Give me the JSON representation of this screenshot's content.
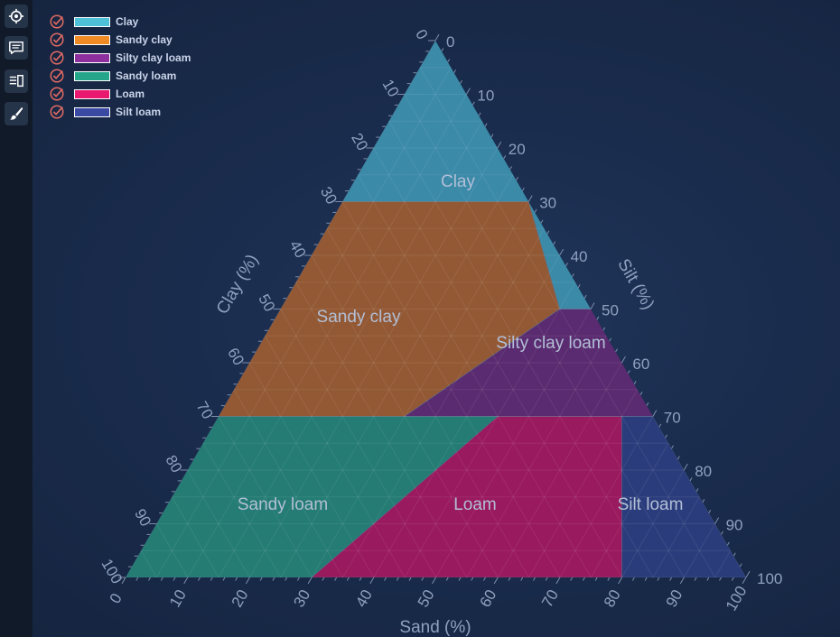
{
  "toolbar": {
    "items": [
      {
        "name": "zoom-to-fit",
        "icon": "crosshair-icon"
      },
      {
        "name": "toggle-legend",
        "icon": "chat-icon"
      },
      {
        "name": "panels",
        "icon": "list-panel-icon"
      },
      {
        "name": "theme",
        "icon": "brush-icon"
      }
    ]
  },
  "legend": {
    "items": [
      {
        "label": "Clay",
        "color": "#4ec1d9",
        "checked": true
      },
      {
        "label": "Sandy clay",
        "color": "#f08a24",
        "checked": true
      },
      {
        "label": "Silty clay loam",
        "color": "#8e2f9e",
        "checked": true
      },
      {
        "label": "Sandy loam",
        "color": "#25a58a",
        "checked": true
      },
      {
        "label": "Loam",
        "color": "#e8196e",
        "checked": true
      },
      {
        "label": "Silt loam",
        "color": "#3a4aa3",
        "checked": true
      }
    ]
  },
  "chart_data": {
    "type": "ternary",
    "axes": {
      "sand": {
        "label": "Sand (%)",
        "ticks": [
          0,
          10,
          20,
          30,
          40,
          50,
          60,
          70,
          80,
          90,
          100
        ]
      },
      "clay": {
        "label": "Clay (%)",
        "ticks": [
          0,
          10,
          20,
          30,
          40,
          50,
          60,
          70,
          80,
          90,
          100
        ]
      },
      "silt": {
        "label": "Silt (%)",
        "ticks": [
          0,
          10,
          20,
          30,
          40,
          50,
          60,
          70,
          80,
          90,
          100
        ]
      }
    },
    "regions": [
      {
        "name": "Clay",
        "color": "#3d8fad",
        "label_pos": {
          "sand": 20,
          "clay": 60,
          "silt": 20
        },
        "vertices": [
          {
            "sand": 0,
            "clay": 100,
            "silt": 0
          },
          {
            "sand": 0,
            "clay": 70,
            "silt": 30
          },
          {
            "sand": 30,
            "clay": 70,
            "silt": 0
          },
          {
            "sand": 45,
            "clay": 50,
            "silt": 5
          },
          {
            "sand": 65,
            "clay": 50,
            "silt": -15
          }
        ]
      },
      {
        "name": "Sandy clay",
        "color": "#9a5c34",
        "label_pos": {
          "sand": 20,
          "clay": 45,
          "silt": 35
        },
        "vertices": [
          {
            "sand": 0,
            "clay": 70,
            "silt": 30
          },
          {
            "sand": 0,
            "clay": 30,
            "silt": 70
          },
          {
            "sand": 30,
            "clay": 30,
            "silt": 40
          },
          {
            "sand": 45,
            "clay": 50,
            "silt": 5
          },
          {
            "sand": 30,
            "clay": 70,
            "silt": 0
          }
        ]
      },
      {
        "name": "Silty clay loam",
        "color": "#5e2b72",
        "label_pos": {
          "sand": 50,
          "clay": 40,
          "silt": 10
        },
        "vertices": [
          {
            "sand": 45,
            "clay": 50,
            "silt": 5
          },
          {
            "sand": 30,
            "clay": 30,
            "silt": 40
          },
          {
            "sand": 70,
            "clay": 30,
            "silt": 0
          },
          {
            "sand": 65,
            "clay": 50,
            "silt": -15
          }
        ]
      },
      {
        "name": "Sandy loam",
        "color": "#258176",
        "label_pos": {
          "sand": 20,
          "clay": 15,
          "silt": 65
        },
        "vertices": [
          {
            "sand": 0,
            "clay": 30,
            "silt": 70
          },
          {
            "sand": 0,
            "clay": 0,
            "silt": 100
          },
          {
            "sand": 30,
            "clay": 0,
            "silt": 70
          },
          {
            "sand": 45,
            "clay": 30,
            "silt": 25
          }
        ]
      },
      {
        "name": "Loam",
        "color": "#a0195f",
        "label_pos": {
          "sand": 50,
          "clay": 15,
          "silt": 35
        },
        "vertices": [
          {
            "sand": 45,
            "clay": 30,
            "silt": 25
          },
          {
            "sand": 30,
            "clay": 0,
            "silt": 70
          },
          {
            "sand": 80,
            "clay": 0,
            "silt": 20
          },
          {
            "sand": 65,
            "clay": 30,
            "silt": 5
          }
        ]
      },
      {
        "name": "Silt loam",
        "color": "#2c3d7e",
        "label_pos": {
          "sand": 85,
          "clay": 15,
          "silt": 0
        },
        "vertices": [
          {
            "sand": 65,
            "clay": 30,
            "silt": 5
          },
          {
            "sand": 80,
            "clay": 0,
            "silt": 20
          },
          {
            "sand": 100,
            "clay": 0,
            "silt": 0
          },
          {
            "sand": 70,
            "clay": 30,
            "silt": 0
          }
        ]
      }
    ],
    "grid": true,
    "legend_position": "top-left"
  }
}
